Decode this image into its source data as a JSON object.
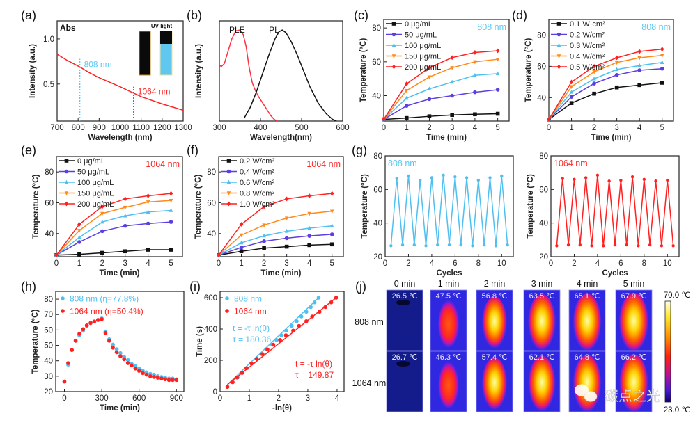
{
  "chart_data": [
    {
      "panel_label": "(a)",
      "type": "line",
      "xlabel": "Wavelength (nm)",
      "ylabel": "Intensity (a.u.)",
      "xlim": [
        700,
        1300
      ],
      "ylim": [
        0.09,
        1.2
      ],
      "xticks": [
        "700",
        "800",
        "900",
        "1000",
        "1100",
        "1200",
        "1300"
      ],
      "yticks": [
        "0.5",
        "1.0"
      ],
      "annotations": [
        "Abs",
        "UV light",
        "808 nm",
        "1064 nm"
      ],
      "annotation_colors": [
        "#000000",
        "#000000",
        "#5bc8f0",
        "#ff2a2a"
      ],
      "markers_nm": [
        808,
        1064
      ],
      "series": [
        {
          "color": "#ff2020",
          "marker": "none",
          "x": [
            700,
            750,
            808,
            850,
            900,
            950,
            1000,
            1064,
            1100,
            1150,
            1200,
            1250,
            1300
          ],
          "y": [
            0.83,
            0.76,
            0.69,
            0.63,
            0.57,
            0.52,
            0.47,
            0.4,
            0.36,
            0.32,
            0.28,
            0.245,
            0.21
          ]
        }
      ]
    },
    {
      "panel_label": "(b)",
      "type": "line",
      "xlabel": "Wavelength(nm)",
      "ylabel": "Intensity (a.u.)",
      "xlim": [
        300,
        600
      ],
      "ylim": [
        0,
        1.1
      ],
      "xticks": [
        "300",
        "400",
        "500",
        "600"
      ],
      "yticks": [],
      "series": [
        {
          "name": "PLE",
          "color": "#ff3040",
          "marker": "none",
          "x": [
            300,
            305,
            312,
            320,
            330,
            340,
            350,
            358,
            365,
            372,
            380,
            388,
            395,
            405,
            415,
            425,
            433,
            440
          ],
          "y": [
            0.61,
            0.6,
            0.63,
            0.75,
            0.9,
            0.99,
            1.0,
            0.95,
            0.82,
            0.6,
            0.42,
            0.33,
            0.27,
            0.2,
            0.13,
            0.06,
            0.02,
            0.0
          ]
        },
        {
          "name": "PL",
          "color": "#111111",
          "marker": "none",
          "x": [
            360,
            375,
            390,
            405,
            420,
            435,
            445,
            453,
            462,
            475,
            490,
            505,
            520,
            540,
            560,
            575,
            585
          ],
          "y": [
            0.03,
            0.15,
            0.32,
            0.52,
            0.72,
            0.9,
            0.98,
            1.0,
            0.97,
            0.87,
            0.72,
            0.55,
            0.38,
            0.2,
            0.08,
            0.02,
            0.0
          ]
        }
      ]
    },
    {
      "panel_label": "(c)",
      "type": "line",
      "xlabel": "Time (min)",
      "ylabel": "Temperature (°C)",
      "xlim": [
        0,
        5.5
      ],
      "ylim": [
        25,
        85
      ],
      "xticks": [
        "0",
        "1",
        "2",
        "3",
        "4",
        "5"
      ],
      "yticks": [
        "40",
        "60",
        "80"
      ],
      "annotations": [
        "808 nm"
      ],
      "annotation_colors": [
        "#5bc8f0"
      ],
      "x": [
        0,
        1,
        2,
        3,
        4,
        5
      ],
      "series": [
        {
          "name": "0 μg/mL",
          "color": "#111111",
          "marker": "square",
          "y": [
            26,
            26.8,
            27.8,
            28.6,
            29,
            29.3
          ]
        },
        {
          "name": "50 μg/mL",
          "color": "#5b3fe0",
          "marker": "circle",
          "y": [
            26,
            34,
            38,
            40,
            42,
            43.5
          ]
        },
        {
          "name": "100 μg/mL",
          "color": "#4fbff0",
          "marker": "triangle-up",
          "y": [
            26,
            38.5,
            44,
            48,
            52,
            53
          ]
        },
        {
          "name": "150 μg/mL",
          "color": "#ff8a1a",
          "marker": "triangle-down",
          "y": [
            26,
            43,
            51,
            56.5,
            60,
            61.5
          ]
        },
        {
          "name": "200 μg/mL",
          "color": "#ff2020",
          "marker": "diamond",
          "y": [
            26,
            47,
            56.5,
            62.5,
            65.5,
            66.5
          ]
        }
      ]
    },
    {
      "panel_label": "(d)",
      "type": "line",
      "xlabel": "Time (min)",
      "ylabel": "Temperature (°C)",
      "xlim": [
        0,
        5.5
      ],
      "ylim": [
        25,
        90
      ],
      "xticks": [
        "0",
        "1",
        "2",
        "3",
        "4",
        "5"
      ],
      "yticks": [
        "40",
        "60",
        "80"
      ],
      "annotations": [
        "808 nm"
      ],
      "annotation_colors": [
        "#5bc8f0"
      ],
      "x": [
        0,
        1,
        2,
        3,
        4,
        5
      ],
      "series": [
        {
          "name": "0.1 W·cm²",
          "color": "#111111",
          "marker": "square",
          "y": [
            26,
            36.5,
            42.5,
            46.5,
            48,
            49.5
          ]
        },
        {
          "name": "0.2 W/cm²",
          "color": "#5b3fe0",
          "marker": "circle",
          "y": [
            26,
            40.5,
            49,
            54.5,
            57.5,
            58.5
          ]
        },
        {
          "name": "0.3 W/cm²",
          "color": "#4fbff0",
          "marker": "triangle-up",
          "y": [
            26,
            43.5,
            52,
            58,
            60.5,
            62.5
          ]
        },
        {
          "name": "0.4 W/cm²",
          "color": "#ff8a1a",
          "marker": "triangle-down",
          "y": [
            26,
            47,
            56.5,
            62.5,
            65.5,
            67
          ]
        },
        {
          "name": "0.5 W/cm²",
          "color": "#ff2020",
          "marker": "diamond",
          "y": [
            26,
            50,
            60,
            65.5,
            69.5,
            71
          ]
        }
      ]
    },
    {
      "panel_label": "(e)",
      "type": "line",
      "xlabel": "Time (min)",
      "ylabel": "Temperature (°C)",
      "xlim": [
        0,
        5.5
      ],
      "ylim": [
        25,
        90
      ],
      "xticks": [
        "0",
        "1",
        "2",
        "3",
        "4",
        "5"
      ],
      "yticks": [
        "40",
        "60",
        "80"
      ],
      "annotations": [
        "1064 nm"
      ],
      "annotation_colors": [
        "#ff2a2a"
      ],
      "x": [
        0,
        1,
        2,
        3,
        4,
        5
      ],
      "series": [
        {
          "name": "0 μg/mL",
          "color": "#111111",
          "marker": "square",
          "y": [
            26,
            26.5,
            27.5,
            28.5,
            29.5,
            29.5
          ]
        },
        {
          "name": "50 μg/mL",
          "color": "#5b3fe0",
          "marker": "circle",
          "y": [
            26,
            34.5,
            41.5,
            45,
            46.5,
            47.5
          ]
        },
        {
          "name": "100 μg/mL",
          "color": "#4fbff0",
          "marker": "triangle-up",
          "y": [
            26,
            37.5,
            47.5,
            51.5,
            54,
            55
          ]
        },
        {
          "name": "150 μg/mL",
          "color": "#ff8a1a",
          "marker": "triangle-down",
          "y": [
            26,
            42,
            53,
            57,
            60.5,
            61.5
          ]
        },
        {
          "name": "200 μg/mL",
          "color": "#ff2020",
          "marker": "diamond",
          "y": [
            26,
            46,
            57.5,
            62.5,
            64.5,
            66
          ]
        }
      ]
    },
    {
      "panel_label": "(f)",
      "type": "line",
      "xlabel": "Time (min)",
      "ylabel": "Temperature (°C)",
      "xlim": [
        0,
        5.5
      ],
      "ylim": [
        25,
        90
      ],
      "xticks": [
        "0",
        "1",
        "2",
        "3",
        "4",
        "5"
      ],
      "yticks": [
        "40",
        "60",
        "80"
      ],
      "annotations": [
        "1064 nm"
      ],
      "annotation_colors": [
        "#ff2a2a"
      ],
      "x": [
        0,
        1,
        2,
        3,
        4,
        5
      ],
      "series": [
        {
          "name": "0.2 W/cm²",
          "color": "#111111",
          "marker": "square",
          "y": [
            26,
            28.5,
            30.5,
            31.5,
            32.5,
            33
          ]
        },
        {
          "name": "0.4 W/cm²",
          "color": "#5b3fe0",
          "marker": "circle",
          "y": [
            26,
            31,
            35,
            37,
            38.5,
            39.5
          ]
        },
        {
          "name": "0.6 W/cm²",
          "color": "#4fbff0",
          "marker": "triangle-up",
          "y": [
            26,
            34,
            38.5,
            41.5,
            43.5,
            45
          ]
        },
        {
          "name": "0.8 W/cm²",
          "color": "#ff8a1a",
          "marker": "triangle-down",
          "y": [
            26,
            39,
            45.5,
            50,
            53,
            54.5
          ]
        },
        {
          "name": "1.0 W/cm²",
          "color": "#ff2020",
          "marker": "diamond",
          "y": [
            26,
            46,
            57.5,
            62.5,
            64.5,
            66
          ]
        }
      ]
    },
    {
      "panel_label": "(g)",
      "type": "line",
      "xlabel": "Cycles",
      "ylabel": "Temperature (°C)",
      "xlim": [
        0,
        11
      ],
      "ylim": [
        20,
        80
      ],
      "xticks": [
        "0",
        "2",
        "4",
        "6",
        "8",
        "10"
      ],
      "yticks": [
        "20",
        "40",
        "60",
        "80"
      ],
      "annotations": [
        "808 nm"
      ],
      "annotation_colors": [
        "#5bc8f0"
      ],
      "x": [
        0.5,
        1,
        1.5,
        2,
        2.5,
        3,
        3.5,
        4,
        4.5,
        5,
        5.5,
        6,
        6.5,
        7,
        7.5,
        8,
        8.5,
        9,
        9.5,
        10,
        10.5
      ],
      "series": [
        {
          "color": "#4fbff0",
          "marker": "circle-small",
          "y": [
            26.5,
            66.5,
            27,
            68,
            27,
            65.5,
            26.5,
            67,
            27,
            68.5,
            27,
            67.5,
            27,
            67,
            26.5,
            65.5,
            27,
            67,
            26.5,
            68,
            27
          ]
        }
      ]
    },
    {
      "panel_label": "",
      "type": "line",
      "xlabel": "Cycles",
      "ylabel": "Temperature (°C)",
      "xlim": [
        0,
        11
      ],
      "ylim": [
        20,
        80
      ],
      "xticks": [
        "0",
        "2",
        "4",
        "6",
        "8",
        "10"
      ],
      "yticks": [
        "20",
        "40",
        "60",
        "80"
      ],
      "annotations": [
        "1064 nm"
      ],
      "annotation_colors": [
        "#ff2a2a"
      ],
      "x": [
        0.5,
        1,
        1.5,
        2,
        2.5,
        3,
        3.5,
        4,
        4.5,
        5,
        5.5,
        6,
        6.5,
        7,
        7.5,
        8,
        8.5,
        9,
        9.5,
        10,
        10.5
      ],
      "series": [
        {
          "color": "#ff2020",
          "marker": "circle-small",
          "y": [
            26.5,
            66.5,
            27,
            66,
            27,
            67,
            26.5,
            68.5,
            26.5,
            65,
            27,
            65.5,
            27,
            67.5,
            26.5,
            66,
            27,
            65,
            26.5,
            65.5,
            26.5
          ]
        }
      ]
    },
    {
      "panel_label": "(h)",
      "type": "scatter",
      "xlabel": "Time (min)",
      "ylabel": "Temperature (°C)",
      "xlim": [
        -70,
        960
      ],
      "ylim": [
        20,
        85
      ],
      "xticks": [
        "0",
        "300",
        "600",
        "900"
      ],
      "yticks": [
        "20",
        "30",
        "40",
        "50",
        "60",
        "70",
        "80"
      ],
      "x": [
        0,
        30,
        60,
        90,
        120,
        150,
        180,
        210,
        240,
        270,
        300,
        330,
        360,
        390,
        420,
        450,
        480,
        510,
        540,
        570,
        600,
        630,
        660,
        690,
        720,
        750,
        780,
        810,
        840,
        870,
        900
      ],
      "series": [
        {
          "name": "808 nm (η=77.8%)",
          "color": "#4fbff0",
          "marker": "dot",
          "y": [
            26.5,
            37.5,
            47,
            53,
            56.5,
            59.5,
            62.5,
            64.5,
            65.5,
            66.5,
            67.5,
            59,
            54,
            50.5,
            47.5,
            45,
            42.5,
            40.5,
            38,
            36.5,
            35,
            33.5,
            32.5,
            31.5,
            31,
            30,
            29.5,
            29,
            28.5,
            28.5,
            28
          ]
        },
        {
          "name": "1064 nm (η=50.4%)",
          "color": "#ff2020",
          "marker": "dot",
          "y": [
            26.5,
            38.5,
            47,
            53,
            57.5,
            60.5,
            63,
            64.5,
            65.5,
            66.5,
            67,
            58,
            53,
            48.5,
            45.5,
            43,
            41,
            38.5,
            37,
            35,
            33.5,
            32,
            31,
            30,
            29.5,
            29,
            28.5,
            28,
            27.5,
            27.5,
            27.5
          ]
        }
      ]
    },
    {
      "panel_label": "(i)",
      "type": "scatter",
      "xlabel": "-ln(θ)",
      "ylabel": "Time (s)",
      "xlim": [
        0,
        4.24
      ],
      "ylim": [
        0,
        640
      ],
      "xticks": [
        "0",
        "1",
        "2",
        "3",
        "4"
      ],
      "yticks": [
        "0",
        "200",
        "400",
        "600"
      ],
      "series": [
        {
          "name": "808 nm",
          "color": "#4fbff0",
          "marker": "dot",
          "x": [
            0.25,
            0.42,
            0.6,
            0.77,
            0.92,
            1.08,
            1.25,
            1.42,
            1.6,
            1.78,
            1.93,
            2.1,
            2.26,
            2.45,
            2.62,
            2.78,
            2.95,
            3.1,
            3.23,
            3.37
          ],
          "y": [
            30,
            60,
            90,
            120,
            150,
            180,
            210,
            240,
            270,
            300,
            330,
            360,
            390,
            420,
            450,
            480,
            510,
            540,
            570,
            600
          ],
          "fit": {
            "x": [
              0.25,
              3.37
            ],
            "y": [
              45,
              600
            ],
            "equation": "t = -τ ln(θ)",
            "tau": "τ = 180.36"
          }
        },
        {
          "name": "1064 nm",
          "color": "#ff2020",
          "marker": "dot",
          "x": [
            0.25,
            0.43,
            0.58,
            0.75,
            0.9,
            1.07,
            1.25,
            1.45,
            1.62,
            1.82,
            2.05,
            2.25,
            2.5,
            2.7,
            2.95,
            3.15,
            3.4,
            3.6,
            3.8,
            3.97
          ],
          "y": [
            30,
            60,
            90,
            120,
            150,
            180,
            210,
            240,
            270,
            300,
            330,
            360,
            390,
            420,
            450,
            480,
            510,
            540,
            570,
            600
          ],
          "fit": {
            "x": [
              0.25,
              3.97
            ],
            "y": [
              45,
              600
            ],
            "equation": "t = -τ ln(θ)",
            "tau": "τ = 149.87"
          }
        }
      ]
    }
  ],
  "panel_j": {
    "panel_label": "(j)",
    "columns": [
      "0 min",
      "1 min",
      "2 min",
      "3 min",
      "4 min",
      "5 min"
    ],
    "rows": [
      {
        "label": "808 nm",
        "temps": [
          "26.5 ℃",
          "47.5 ℃",
          "56.8 ℃",
          "63.5 ℃",
          "65.1 ℃",
          "67.9 ℃"
        ],
        "values": [
          26.5,
          47.5,
          56.8,
          63.5,
          65.1,
          67.9
        ]
      },
      {
        "label": "1064 nm",
        "temps": [
          "26.7 ℃",
          "46.3 ℃",
          "57.4 ℃",
          "62.1 ℃",
          "64.8 ℃",
          "66.2 ℃"
        ],
        "values": [
          26.7,
          46.3,
          57.4,
          62.1,
          64.8,
          66.2
        ]
      }
    ],
    "colorbar": {
      "max": "70.0 ℃",
      "min": "23.0 ℃",
      "max_value": 70.0,
      "min_value": 23.0
    }
  },
  "watermark": {
    "text": "碳点之光",
    "icon": "wechat-icon"
  }
}
